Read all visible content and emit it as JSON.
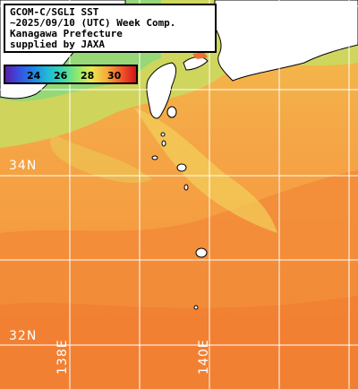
{
  "title": {
    "line1": "GCOM-C/SGLI SST",
    "line2": "~2025/09/10 (UTC) Week Comp.",
    "line3": "Kanagawa Prefecture",
    "line4": "supplied by JAXA"
  },
  "colorbar": {
    "ticks": [
      "24",
      "26",
      "28",
      "30"
    ],
    "colors": [
      "#5a1ea8",
      "#1e7fe6",
      "#3fd8a8",
      "#e8e850",
      "#f8a838",
      "#d01418"
    ]
  },
  "grid": {
    "latitude_labels": [
      "34N",
      "32N"
    ],
    "longitude_labels": [
      "138E",
      "140E"
    ]
  },
  "colors": {
    "ocean_warm": "#f59a3c",
    "ocean_mid": "#f5b84a",
    "coastal_cool": "#9de07a",
    "land": "#ffffff",
    "gridline": "#ffffff"
  }
}
